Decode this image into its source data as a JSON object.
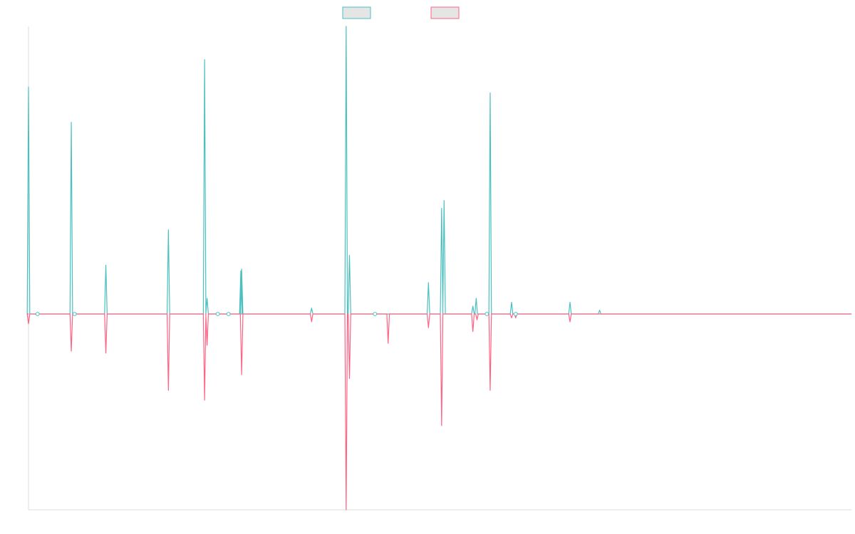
{
  "chart_data": {
    "type": "line",
    "title": "",
    "xlabel": "",
    "ylabel": "",
    "x_range": [
      0,
      1000
    ],
    "ylim": [
      -1.0,
      1.47
    ],
    "grid": false,
    "legend": {
      "position": "top-center",
      "entries": [
        "",
        ""
      ]
    },
    "colors": {
      "series_a": "#4bc0c0",
      "series_b": "#ff6384",
      "legend_fill": "#e5e5e5",
      "axis": "#dddddd"
    },
    "series": [
      {
        "color": "#4bc0c0",
        "spikes": [
          {
            "x": 0,
            "y": 1.16
          },
          {
            "x": 52,
            "y": 0.98
          },
          {
            "x": 94,
            "y": 0.25
          },
          {
            "x": 170,
            "y": 0.43
          },
          {
            "x": 214,
            "y": 1.3
          },
          {
            "x": 217,
            "y": 0.08
          },
          {
            "x": 258,
            "y": 0.22
          },
          {
            "x": 259,
            "y": 0.23
          },
          {
            "x": 344,
            "y": 0.03
          },
          {
            "x": 386,
            "y": 1.47
          },
          {
            "x": 390,
            "y": 0.3
          },
          {
            "x": 486,
            "y": 0.16
          },
          {
            "x": 502,
            "y": 0.54
          },
          {
            "x": 505,
            "y": 0.58
          },
          {
            "x": 540,
            "y": 0.04
          },
          {
            "x": 544,
            "y": 0.08
          },
          {
            "x": 561,
            "y": 1.13
          },
          {
            "x": 587,
            "y": 0.06
          },
          {
            "x": 658,
            "y": 0.06
          },
          {
            "x": 694,
            "y": 0.02
          }
        ]
      },
      {
        "color": "#ff6384",
        "spikes": [
          {
            "x": 0,
            "y": -0.05
          },
          {
            "x": 52,
            "y": -0.19
          },
          {
            "x": 94,
            "y": -0.2
          },
          {
            "x": 170,
            "y": -0.39
          },
          {
            "x": 214,
            "y": -0.44
          },
          {
            "x": 217,
            "y": -0.16
          },
          {
            "x": 259,
            "y": -0.31
          },
          {
            "x": 344,
            "y": -0.04
          },
          {
            "x": 386,
            "y": -1.0
          },
          {
            "x": 390,
            "y": -0.33
          },
          {
            "x": 437,
            "y": -0.15
          },
          {
            "x": 486,
            "y": -0.07
          },
          {
            "x": 502,
            "y": -0.57
          },
          {
            "x": 540,
            "y": -0.09
          },
          {
            "x": 545,
            "y": -0.03
          },
          {
            "x": 561,
            "y": -0.39
          },
          {
            "x": 587,
            "y": -0.02
          },
          {
            "x": 592,
            "y": -0.02
          },
          {
            "x": 658,
            "y": -0.04
          }
        ]
      }
    ],
    "markers": [
      {
        "x": 11
      },
      {
        "x": 56
      },
      {
        "x": 230
      },
      {
        "x": 243
      },
      {
        "x": 421
      },
      {
        "x": 557
      },
      {
        "x": 592
      }
    ]
  }
}
